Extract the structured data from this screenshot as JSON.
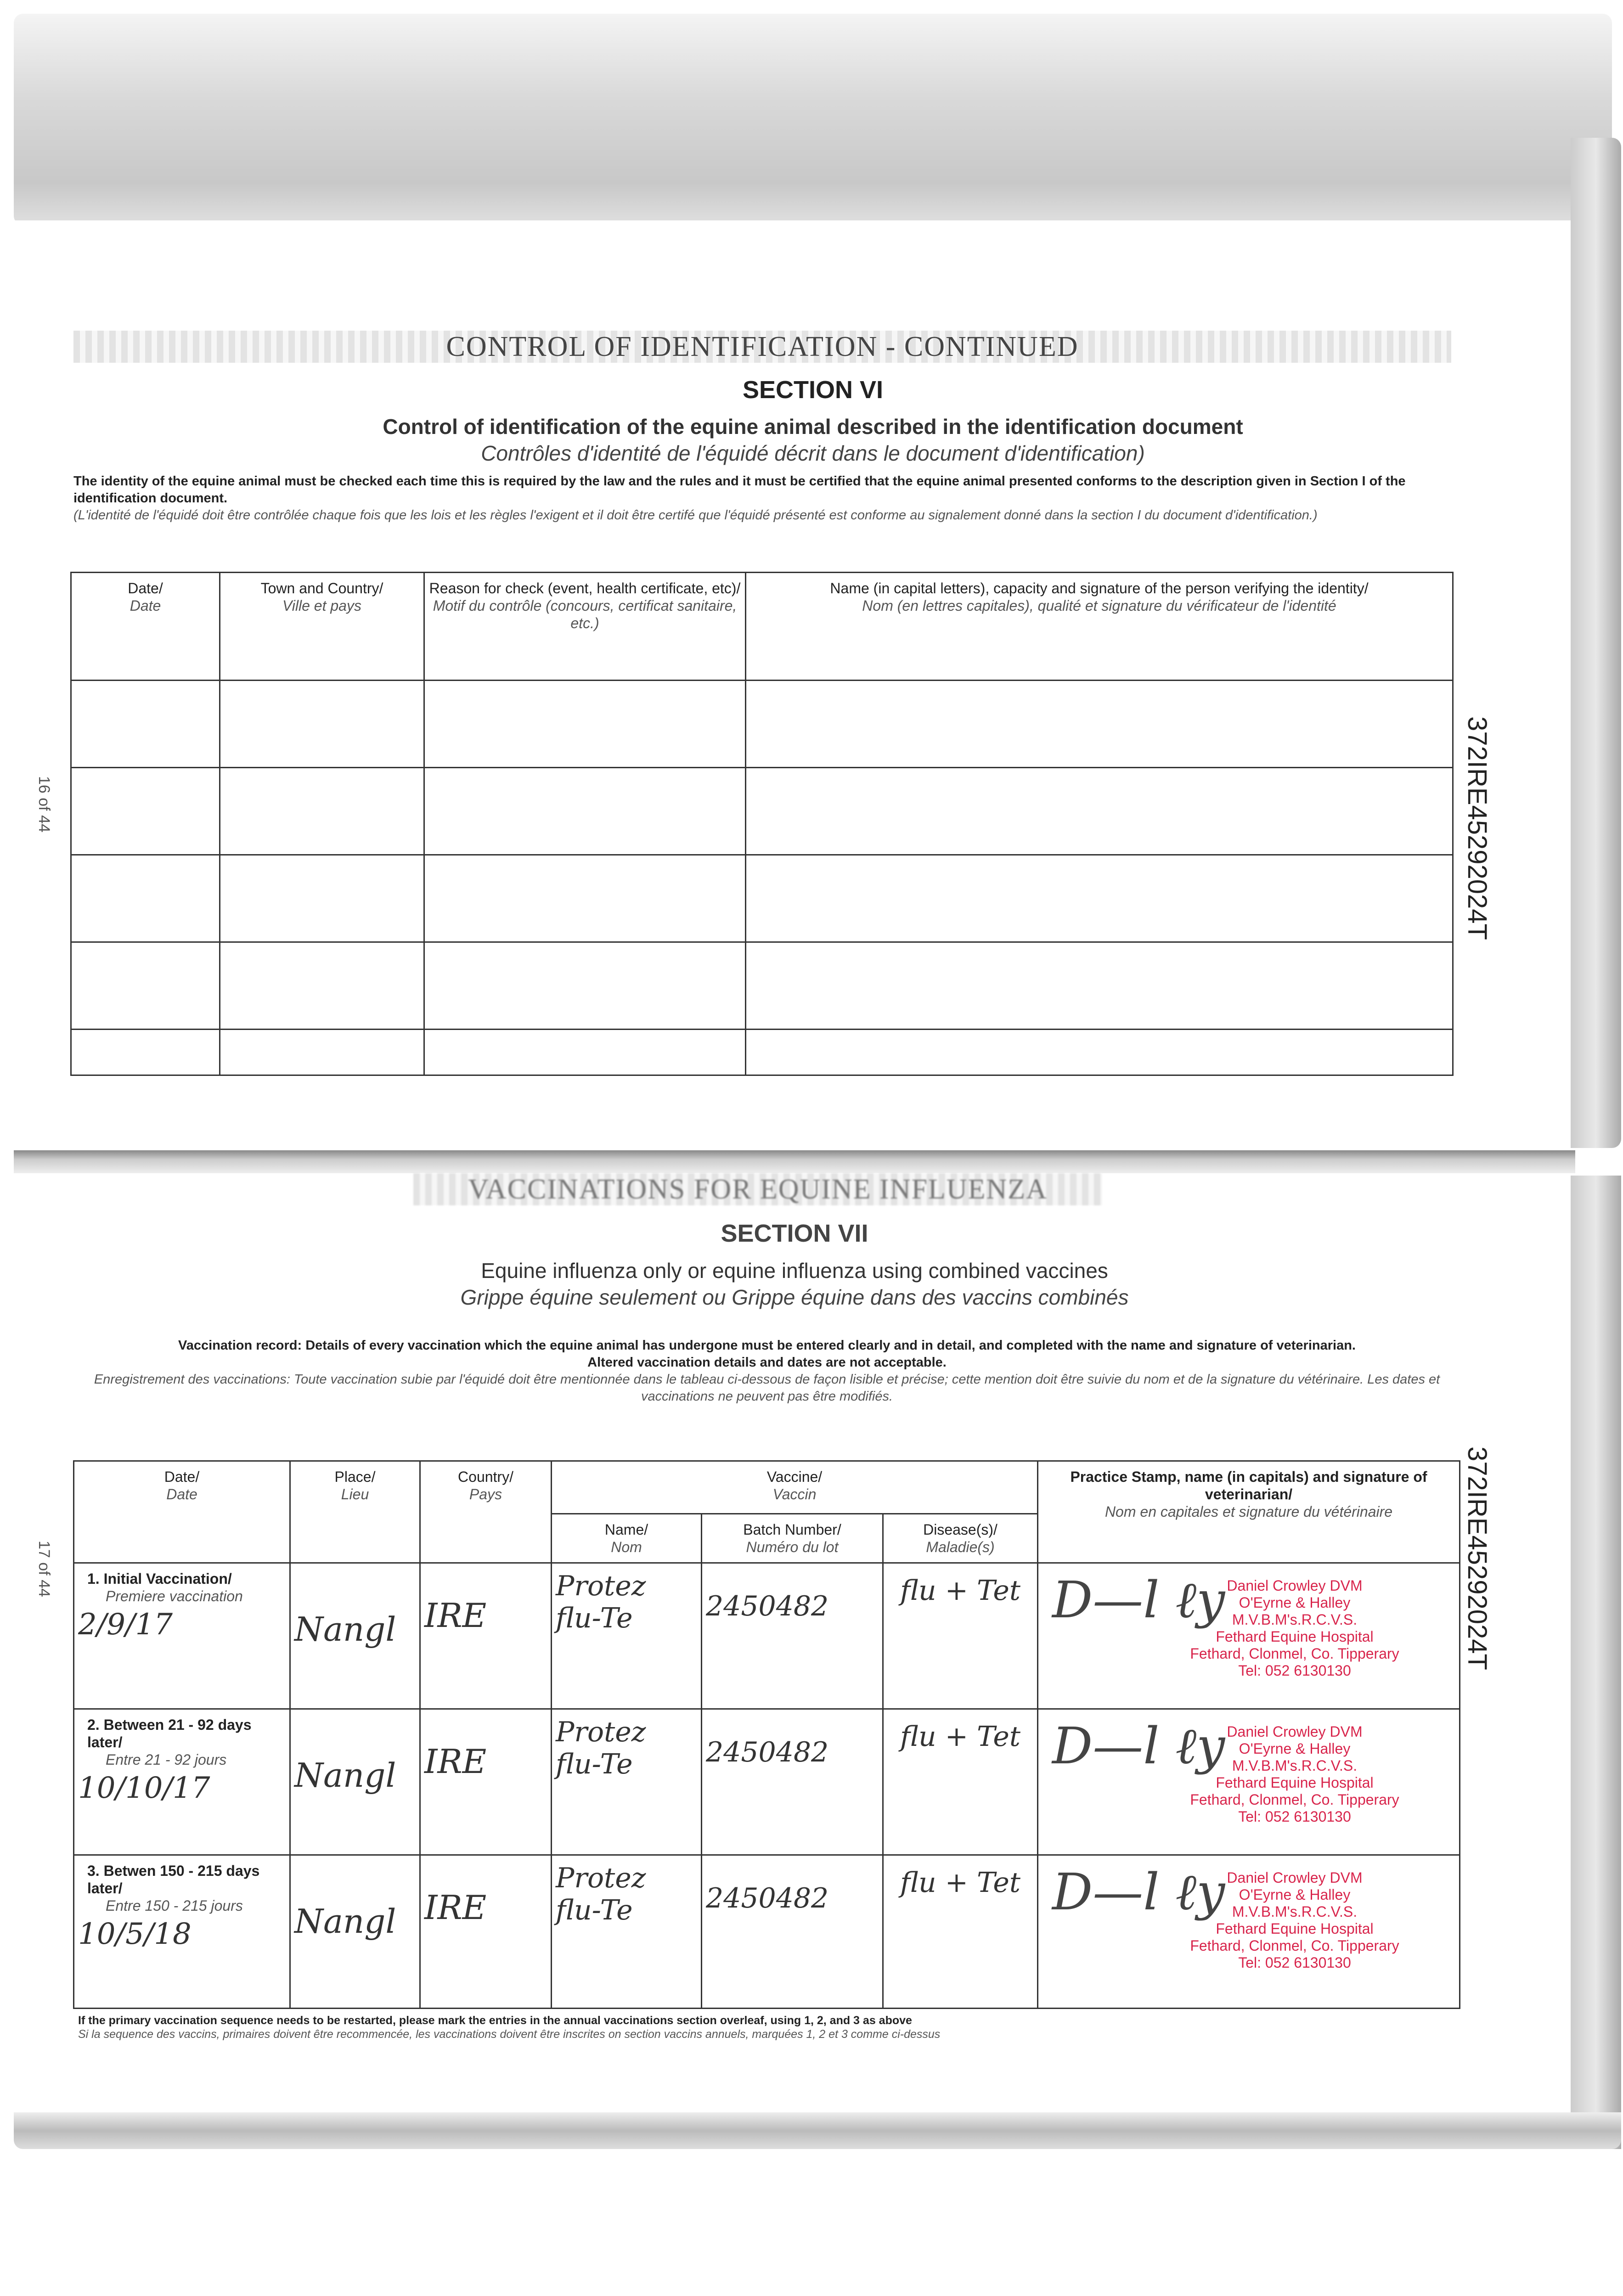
{
  "section6": {
    "banner": "CONTROL OF IDENTIFICATION - CONTINUED",
    "section": "SECTION VI",
    "title_en": "Control of identification of the equine animal described in the identification document",
    "title_fr": "Contrôles d'identité de l'équidé décrit dans le document d'identification)",
    "para_en": "The identity of the equine animal must be checked each time this is required by the law and the rules and it must be certified that the equine animal presented conforms to the description given in Section I of the identification document.",
    "para_fr": "(L'identité de l'équidé doit être contrôlée chaque fois que les lois et les règles l'exigent et il doit être certifé que l'équidé présenté est conforme au signalement donné dans la section I du document d'identification.)",
    "columns": [
      {
        "en": "Date/",
        "fr": "Date"
      },
      {
        "en": "Town and Country/",
        "fr": "Ville et pays"
      },
      {
        "en": "Reason for check (event, health certificate, etc)/",
        "fr": "Motif du contrôle (concours, certificat sanitaire, etc.)"
      },
      {
        "en": "Name (in capital letters), capacity and signature of the person verifying the identity/",
        "fr": "Nom (en lettres capitales), qualité et signature du vérificateur de l'identité"
      }
    ],
    "page_label": "16 of 44",
    "doc_id": "372IRE45292024T"
  },
  "section7": {
    "banner": "VACCINATIONS FOR EQUINE INFLUENZA",
    "section": "SECTION VII",
    "title_en": "Equine influenza only or equine influenza using combined vaccines",
    "title_fr": "Grippe équine seulement ou Grippe équine dans des vaccins combinés",
    "para_en1": "Vaccination record: Details of every vaccination which the equine animal has undergone must be entered clearly and in detail, and completed with the name and signature of veterinarian.",
    "para_en2": "Altered vaccination details and dates are not acceptable.",
    "para_fr": "Enregistrement des vaccinations: Toute vaccination subie par l'équidé doit être mentionnée dans le tableau ci-dessous de façon lisible et précise; cette mention doit être suivie du nom et de la signature du vétérinaire. Les dates et vaccinations ne peuvent pas être modifiés.",
    "headers": {
      "date": {
        "en": "Date/",
        "fr": "Date"
      },
      "place": {
        "en": "Place/",
        "fr": "Lieu"
      },
      "country": {
        "en": "Country/",
        "fr": "Pays"
      },
      "vaccine": {
        "en": "Vaccine/",
        "fr": "Vaccin"
      },
      "name": {
        "en": "Name/",
        "fr": "Nom"
      },
      "batch": {
        "en": "Batch Number/",
        "fr": "Numéro du lot"
      },
      "disease": {
        "en": "Disease(s)/",
        "fr": "Maladie(s)"
      },
      "vet": {
        "en": "Practice Stamp, name (in capitals) and signature of veterinarian/",
        "fr": "Nom en capitales et signature du vétérinaire"
      }
    },
    "rows": [
      {
        "label_en": "1. Initial Vaccination/",
        "label_fr": "Premiere vaccination",
        "date": "2/9/17",
        "place": "Nangl",
        "country": "IRE",
        "name": "Protez flu-Te",
        "batch": "2450482",
        "disease": "flu + Tet"
      },
      {
        "label_en": "2. Between 21 - 92 days later/",
        "label_fr": "Entre 21 - 92 jours",
        "date": "10/10/17",
        "place": "Nangl",
        "country": "IRE",
        "name": "Protez flu-Te",
        "batch": "2450482",
        "disease": "flu + Tet"
      },
      {
        "label_en": "3. Betwen 150 - 215 days later/",
        "label_fr": "Entre 150 - 215 jours",
        "date": "10/5/18",
        "place": "Nangl",
        "country": "IRE",
        "name": "Protez flu-Te",
        "batch": "2450482",
        "disease": "flu + Tet"
      }
    ],
    "stamp": [
      "Daniel Crowley DVM",
      "O'Eyrne & Halley",
      "M.V.B.M's.R.C.V.S.",
      "Fethard Equine Hospital",
      "Fethard, Clonmel, Co. Tipperary",
      "Tel: 052 6130130"
    ],
    "stamp_color": "#d8244b",
    "footnote_en": "If the primary vaccination sequence needs to be restarted, please mark the entries in the annual vaccinations section overleaf, using 1, 2, and 3 as above",
    "footnote_fr": "Si la sequence des vaccins, primaires doivent être recommencée, les vaccinations doivent être inscrites on section vaccins annuels, marquées 1, 2 et 3 comme ci-dessus",
    "page_label": "17 of 44",
    "doc_id": "372IRE45292024T"
  }
}
